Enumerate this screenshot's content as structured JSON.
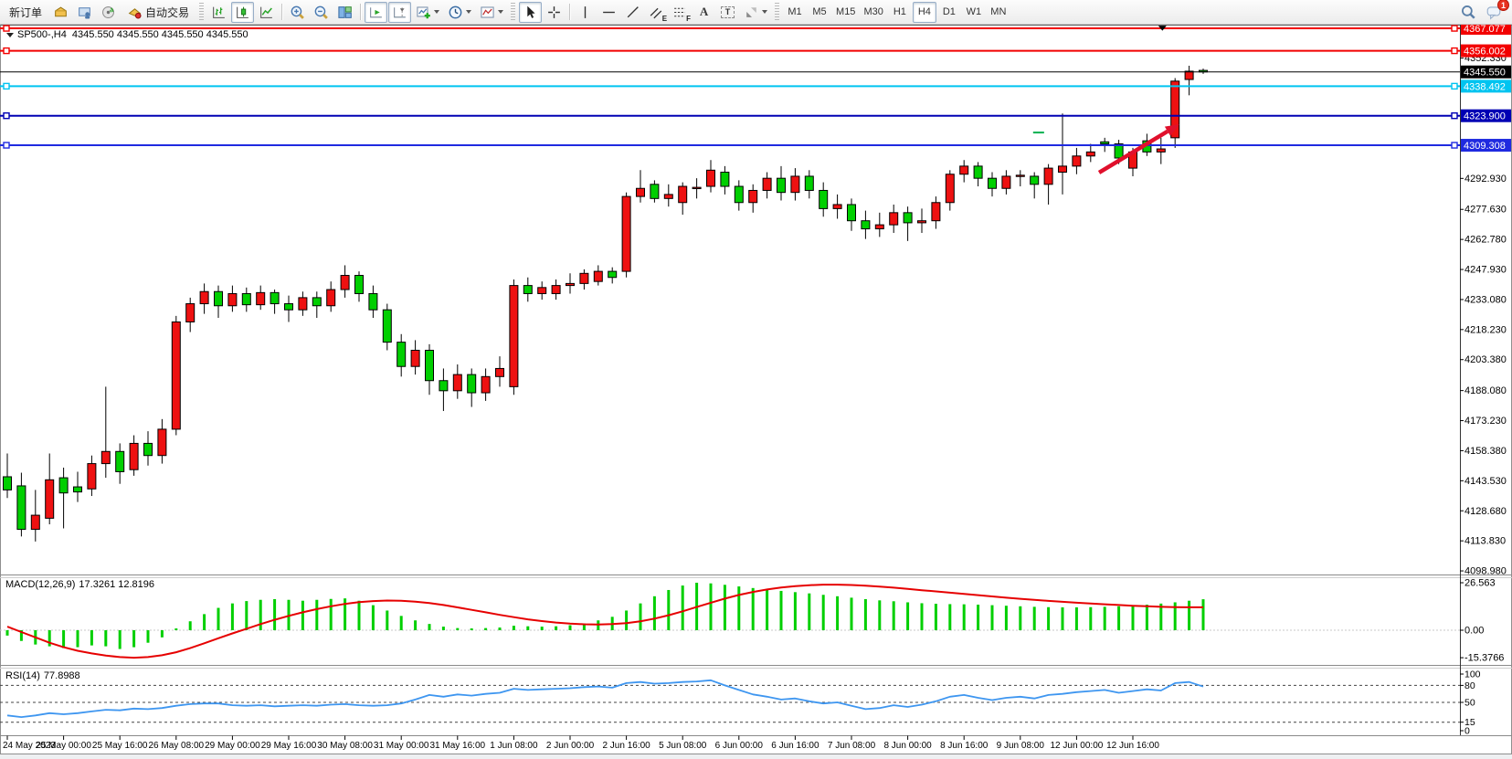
{
  "toolbar": {
    "new_order_label": "新订单",
    "autotrading_label": "自动交易",
    "timeframes": [
      "M1",
      "M5",
      "M15",
      "M30",
      "H1",
      "H4",
      "D1",
      "W1",
      "MN"
    ],
    "active_timeframe": "H4",
    "chat_badge_count": "1",
    "channel_tool_letter": "E",
    "fibonacci_tool_letter": "F",
    "text_tool_letter": "A",
    "label_tool_letter": "T"
  },
  "chart": {
    "title": "SP500-,H4  4345.550 4345.550 4345.550 4345.550",
    "macd_label": "MACD(12,26,9)",
    "macd_values": "17.3261 12.8196",
    "rsi_label": "RSI(14)",
    "rsi_value": "77.8988"
  },
  "chart_data": {
    "type": "candlestick",
    "symbol": "SP500-",
    "timeframe": "H4",
    "ohlc_display": [
      "4345.550",
      "4345.550",
      "4345.550",
      "4345.550"
    ],
    "colors": {
      "bull_candle": "#ee1111",
      "bear_candle": "#00cf00",
      "candle_outline": "#000000",
      "macd_histogram": "#00cf00",
      "macd_signal": "#e60000",
      "rsi_line": "#3e96f0",
      "axis_text": "#000000",
      "current_price": "#000000"
    },
    "price_axis": {
      "top_price": 4368.9,
      "bottom_price": 4097.2,
      "ticks": [
        "4352.330",
        "4292.930",
        "4277.630",
        "4262.780",
        "4247.930",
        "4233.080",
        "4218.230",
        "4203.380",
        "4188.080",
        "4173.230",
        "4158.380",
        "4143.530",
        "4128.680",
        "4113.830",
        "4098.980"
      ]
    },
    "levels": [
      {
        "price": 4367.077,
        "label": "4367.077",
        "color": "#f20000",
        "width": 2,
        "handles": true
      },
      {
        "price": 4356.002,
        "label": "4356.002",
        "color": "#f20000",
        "width": 2,
        "handles": true
      },
      {
        "price": 4345.55,
        "label": "4345.550",
        "color": "#000000",
        "width": 1,
        "handles": false
      },
      {
        "price": 4338.492,
        "label": "4338.492",
        "color": "#00c4f0",
        "width": 2,
        "handles": true
      },
      {
        "price": 4323.9,
        "label": "4323.900",
        "color": "#0000b4",
        "width": 2,
        "handles": true
      },
      {
        "price": 4309.308,
        "label": "4309.308",
        "color": "#1f2ae0",
        "width": 2,
        "handles": true
      }
    ],
    "time_labels": [
      "24 May 2023",
      "25 May 00:00",
      "25 May 16:00",
      "26 May 08:00",
      "29 May 00:00",
      "29 May 16:00",
      "30 May 08:00",
      "31 May 00:00",
      "31 May 16:00",
      "1 Jun 08:00",
      "2 Jun 00:00",
      "2 Jun 16:00",
      "5 Jun 08:00",
      "6 Jun 00:00",
      "6 Jun 16:00",
      "7 Jun 08:00",
      "8 Jun 00:00",
      "8 Jun 16:00",
      "9 Jun 08:00",
      "12 Jun 00:00",
      "12 Jun 16:00"
    ],
    "bars_per_label": 4,
    "candles": [
      [
        4145.5,
        4157,
        4135,
        4139
      ],
      [
        4141,
        4147.5,
        4116,
        4119.5
      ],
      [
        4119.5,
        4139,
        4113.5,
        4126.5
      ],
      [
        4125,
        4157,
        4122,
        4144
      ],
      [
        4145,
        4150,
        4120,
        4137.5
      ],
      [
        4140.5,
        4148,
        4133,
        4138
      ],
      [
        4139.5,
        4156,
        4136,
        4152
      ],
      [
        4152,
        4190,
        4145,
        4158
      ],
      [
        4158,
        4162,
        4142,
        4148
      ],
      [
        4149,
        4166,
        4146,
        4162
      ],
      [
        4162,
        4168,
        4151,
        4156
      ],
      [
        4156,
        4174,
        4152,
        4169
      ],
      [
        4169,
        4225,
        4166,
        4222
      ],
      [
        4222,
        4234,
        4217,
        4231
      ],
      [
        4231,
        4241,
        4226,
        4237
      ],
      [
        4237,
        4240,
        4224,
        4230
      ],
      [
        4230,
        4240,
        4227,
        4236
      ],
      [
        4236,
        4239,
        4227,
        4230.5
      ],
      [
        4230.5,
        4240,
        4228,
        4236.5
      ],
      [
        4236.5,
        4238,
        4226,
        4231
      ],
      [
        4231,
        4235,
        4222,
        4228
      ],
      [
        4228,
        4237,
        4225,
        4234
      ],
      [
        4234,
        4237,
        4224,
        4230
      ],
      [
        4230,
        4242,
        4227,
        4238
      ],
      [
        4238,
        4250,
        4234,
        4245
      ],
      [
        4245,
        4247,
        4232,
        4236
      ],
      [
        4236,
        4240,
        4224,
        4228
      ],
      [
        4228,
        4231,
        4208,
        4212
      ],
      [
        4212,
        4216,
        4195,
        4200
      ],
      [
        4200,
        4213,
        4196,
        4208
      ],
      [
        4208,
        4211,
        4186,
        4193
      ],
      [
        4193,
        4199,
        4178,
        4188
      ],
      [
        4188,
        4201,
        4184,
        4196
      ],
      [
        4196,
        4199,
        4180,
        4187
      ],
      [
        4187,
        4199,
        4183,
        4195
      ],
      [
        4195,
        4205,
        4190,
        4199
      ],
      [
        4190,
        4243,
        4186,
        4240
      ],
      [
        4240,
        4244,
        4232,
        4236
      ],
      [
        4236,
        4242,
        4233,
        4239
      ],
      [
        4236,
        4243,
        4233,
        4240
      ],
      [
        4240,
        4246,
        4236,
        4241
      ],
      [
        4241,
        4248,
        4238,
        4246
      ],
      [
        4242,
        4250,
        4240,
        4247
      ],
      [
        4247,
        4249,
        4241,
        4244
      ],
      [
        4247,
        4286,
        4244,
        4284
      ],
      [
        4284,
        4297,
        4281,
        4288
      ],
      [
        4290,
        4292,
        4281,
        4283
      ],
      [
        4283,
        4290,
        4279,
        4285
      ],
      [
        4281,
        4291,
        4275,
        4289
      ],
      [
        4288,
        4293,
        4283,
        4288.5
      ],
      [
        4289,
        4302,
        4286,
        4297
      ],
      [
        4296,
        4299,
        4285,
        4289
      ],
      [
        4289,
        4292,
        4277,
        4281
      ],
      [
        4281,
        4290,
        4276,
        4287
      ],
      [
        4287,
        4296,
        4283,
        4293
      ],
      [
        4293,
        4299,
        4282,
        4286
      ],
      [
        4286,
        4298,
        4282,
        4294
      ],
      [
        4294,
        4297,
        4283,
        4287
      ],
      [
        4287,
        4291,
        4274,
        4278
      ],
      [
        4278,
        4285,
        4273,
        4280
      ],
      [
        4280,
        4283,
        4267,
        4272
      ],
      [
        4272,
        4277,
        4263,
        4268
      ],
      [
        4268,
        4276,
        4264,
        4270
      ],
      [
        4270,
        4280,
        4266,
        4276
      ],
      [
        4276,
        4279,
        4262,
        4271
      ],
      [
        4271,
        4278,
        4266,
        4272
      ],
      [
        4272,
        4284,
        4268,
        4281
      ],
      [
        4281,
        4297,
        4277,
        4295
      ],
      [
        4295,
        4302,
        4291,
        4299
      ],
      [
        4299,
        4301,
        4289,
        4293
      ],
      [
        4293,
        4296,
        4284,
        4288
      ],
      [
        4288,
        4297,
        4285,
        4294
      ],
      [
        4294,
        4297,
        4289,
        4294.5
      ],
      [
        4294,
        4296,
        4283,
        4290
      ],
      [
        4290,
        4300,
        4280,
        4298
      ],
      [
        4296,
        4325,
        4285,
        4299
      ],
      [
        4299,
        4308,
        4295,
        4304
      ],
      [
        4304,
        4310,
        4301,
        4306
      ],
      [
        4311,
        4313,
        4306,
        4310
      ],
      [
        4310,
        4312,
        4300,
        4303
      ],
      [
        4298,
        4308,
        4294,
        4306
      ],
      [
        4311.5,
        4315,
        4304,
        4306
      ],
      [
        4306,
        4313,
        4300,
        4307.5
      ],
      [
        4313,
        4342.5,
        4308,
        4341
      ],
      [
        4341.8,
        4348.6,
        4334,
        4345.9
      ],
      [
        4346.3,
        4347.2,
        4344.6,
        4345.55
      ]
    ],
    "macd": {
      "name": "MACD(12,26,9)",
      "main_value": 17.3261,
      "signal_value": 12.8196,
      "scale_labels": [
        {
          "v": 26.563,
          "t": "26.563"
        },
        {
          "v": 0,
          "t": "0.00"
        },
        {
          "v": -15.3766,
          "t": "-15.3766"
        }
      ],
      "histogram": [
        -3,
        -6,
        -8,
        -9,
        -10,
        -9.5,
        -8.5,
        -9,
        -10.5,
        -9.5,
        -7,
        -4,
        1,
        5,
        9,
        12.5,
        15,
        16.3,
        17,
        17.4,
        17,
        16.5,
        17,
        17.5,
        17.8,
        16.5,
        14,
        11,
        8,
        5.5,
        3.5,
        2,
        1.2,
        1,
        1.2,
        1.5,
        2.5,
        2.2,
        2,
        2.2,
        2.8,
        3.8,
        5.5,
        7.5,
        11,
        15,
        19,
        22.5,
        25,
        26.563,
        26.2,
        25.4,
        24.5,
        23.6,
        22.8,
        22,
        21.3,
        20.6,
        19.8,
        19,
        18.2,
        17.4,
        16.7,
        16.2,
        15.6,
        15.1,
        14.8,
        14.6,
        14.5,
        14.3,
        14,
        13.7,
        13.4,
        13.1,
        12.9,
        12.8,
        12.8,
        12.9,
        13.1,
        13.4,
        13.8,
        14.3,
        14.9,
        15.6,
        16.5,
        17.3261
      ],
      "signal": [
        2,
        -1,
        -4,
        -7,
        -9.5,
        -11.5,
        -13,
        -14.2,
        -15,
        -15.3766,
        -15,
        -14,
        -12.3,
        -10,
        -7.3,
        -4.5,
        -1.8,
        0.8,
        3.4,
        5.8,
        8,
        10,
        11.8,
        13.4,
        14.7,
        15.7,
        16.3,
        16.6,
        16.5,
        16,
        15.2,
        14.1,
        12.8,
        11.4,
        10,
        8.6,
        7.3,
        6.1,
        5.1,
        4.3,
        3.7,
        3.3,
        3.2,
        3.4,
        4,
        5,
        6.5,
        8.4,
        10.6,
        13,
        15.4,
        17.7,
        19.7,
        21.4,
        22.8,
        23.9,
        24.7,
        25.2,
        25.5,
        25.5,
        25.3,
        24.9,
        24.4,
        23.8,
        23.1,
        22.4,
        21.7,
        21,
        20.3,
        19.6,
        18.9,
        18.2,
        17.6,
        17,
        16.4,
        15.9,
        15.4,
        14.9,
        14.5,
        14.1,
        13.7,
        13.4,
        13.1,
        12.9,
        12.85,
        12.8196
      ]
    },
    "rsi": {
      "name": "RSI(14)",
      "value": 77.8988,
      "levels": [
        80,
        50,
        15
      ],
      "scale_labels": [
        {
          "v": 100,
          "t": "100"
        },
        {
          "v": 80,
          "t": "80"
        },
        {
          "v": 50,
          "t": "50"
        },
        {
          "v": 15,
          "t": "15"
        },
        {
          "v": 0,
          "t": "0"
        }
      ],
      "values": [
        27,
        24,
        27,
        31,
        29,
        31,
        34,
        37,
        36,
        39,
        38,
        40,
        44,
        47,
        48,
        48,
        45,
        44,
        45,
        43,
        44,
        45,
        44,
        46,
        47,
        45,
        44,
        45,
        48,
        55,
        63,
        60,
        64,
        62,
        65,
        67,
        74,
        72,
        73,
        74,
        75,
        77,
        78,
        76,
        84,
        86,
        83,
        84,
        86,
        87,
        89,
        80,
        72,
        64,
        60,
        55,
        57,
        52,
        48,
        50,
        44,
        38,
        40,
        45,
        42,
        46,
        52,
        60,
        63,
        58,
        54,
        58,
        60,
        57,
        63,
        65,
        68,
        70,
        72,
        67,
        70,
        73,
        71,
        84,
        86,
        77.9
      ]
    },
    "annotations": {
      "trend_arrow": {
        "from_bar": 77.6,
        "from_price": 4295.8,
        "to_bar": 83.3,
        "to_price": 4319.7,
        "color": "#e0102c"
      },
      "price_flag": {
        "bar": 82.1,
        "price": 4368.4,
        "color": "#000000"
      },
      "order_marker": {
        "bar": 73.3,
        "price": 4315.6,
        "color": "#00b050"
      }
    }
  }
}
